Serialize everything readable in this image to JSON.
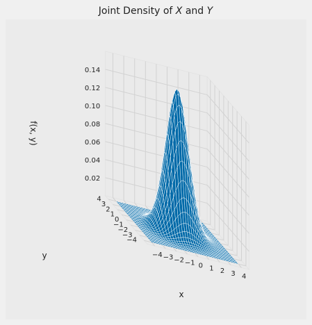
{
  "chart_data": {
    "type": "surface",
    "title_parts": [
      "Joint Density of ",
      "X",
      " and ",
      "Y"
    ],
    "xlabel": "x",
    "ylabel": "y",
    "zlabel": "f(x, y)",
    "x_ticks": [
      "−4",
      "−3",
      "−2",
      "−1",
      "0",
      "1",
      "2",
      "3",
      "4"
    ],
    "y_ticks": [
      "−4",
      "−3",
      "−2",
      "−1",
      "0",
      "1",
      "2",
      "3",
      "4"
    ],
    "z_ticks": [
      "0.02",
      "0.04",
      "0.06",
      "0.08",
      "0.10",
      "0.12",
      "0.14"
    ],
    "xlim": [
      -4,
      4
    ],
    "ylim": [
      -4,
      4
    ],
    "zlim": [
      0,
      0.16
    ],
    "surface": {
      "function": "bivariate normal density",
      "mean": [
        0,
        0
      ],
      "std": [
        1,
        1
      ],
      "correlation": 0,
      "peak_value": 0.159
    },
    "grid": true,
    "colors": {
      "surface": "#0069a8",
      "wire": "#ffffff",
      "grid": "#d2d2d2",
      "pane": "#eaeaea",
      "background": "#f0f0f0"
    }
  }
}
